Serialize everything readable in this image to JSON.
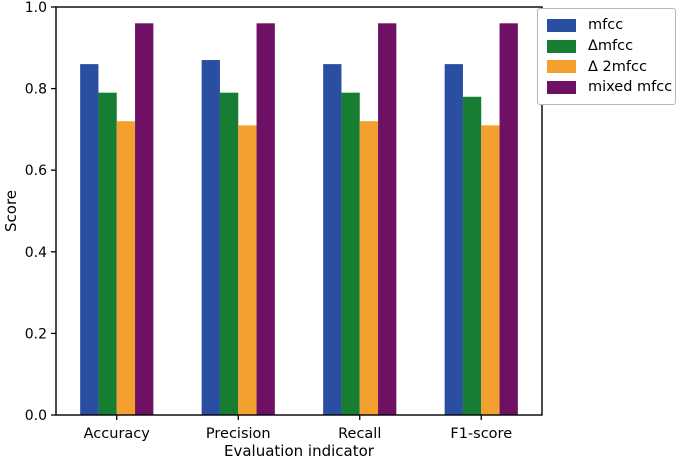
{
  "chart_data": {
    "type": "bar",
    "title": "",
    "xlabel": "Evaluation indicator",
    "ylabel": "Score",
    "categories": [
      "Accuracy",
      "Precision",
      "Recall",
      "F1-score"
    ],
    "series": [
      {
        "name": "mfcc",
        "color": "#2a4fa2",
        "values": [
          0.86,
          0.87,
          0.86,
          0.86
        ]
      },
      {
        "name": "Δmfcc",
        "color": "#177d33",
        "values": [
          0.79,
          0.79,
          0.79,
          0.78
        ]
      },
      {
        "name": "Δ 2mfcc",
        "color": "#f4a02e",
        "values": [
          0.72,
          0.71,
          0.72,
          0.71
        ]
      },
      {
        "name": "mixed mfcc",
        "color": "#6e1164",
        "values": [
          0.96,
          0.96,
          0.96,
          0.96
        ]
      }
    ],
    "ylim": [
      0.0,
      1.0
    ],
    "yticks": [
      0.0,
      0.2,
      0.4,
      0.6,
      0.8,
      1.0
    ],
    "ytick_labels": [
      "0.0",
      "0.2",
      "0.4",
      "0.6",
      "0.8",
      "1.0"
    ],
    "legend_entries": [
      "mfcc",
      "Δmfcc",
      "Δ 2mfcc",
      "mixed mfcc"
    ],
    "legend_position": "upper right, outside axes",
    "grid": false,
    "axes_color": "#000000",
    "background_color": "#ffffff"
  }
}
